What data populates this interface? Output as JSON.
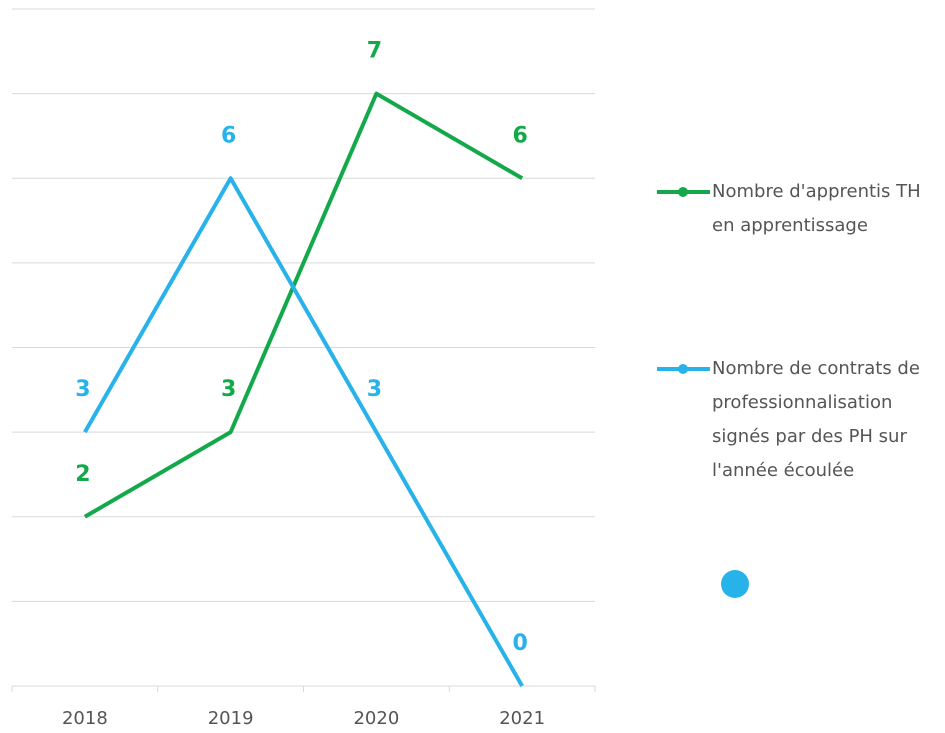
{
  "chart_data": {
    "type": "line",
    "categories": [
      "2018",
      "2019",
      "2020",
      "2021"
    ],
    "series": [
      {
        "name": "Nombre d'apprentis TH en apprentissage",
        "color": "#13a94a",
        "values": [
          2,
          3,
          7,
          6
        ]
      },
      {
        "name": "Nombre de contrats de professionnalisation signés par des PH sur l'année écoulée",
        "color": "#27b2ea",
        "values": [
          3,
          6,
          3,
          0
        ]
      }
    ],
    "ylim": [
      0,
      8
    ],
    "yticks": [
      0,
      1,
      2,
      3,
      4,
      5,
      6,
      7,
      8
    ],
    "grid": true,
    "legend": "right"
  }
}
